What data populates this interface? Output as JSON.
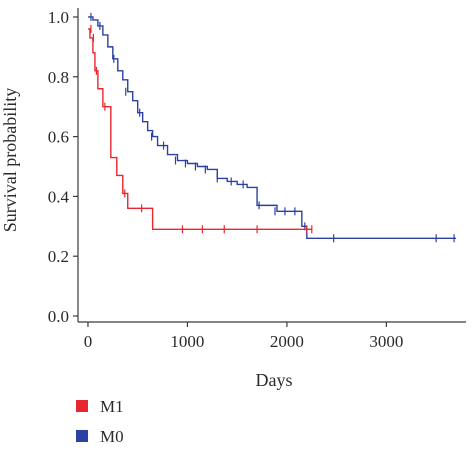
{
  "chart_data": {
    "type": "line",
    "chart_kind": "kaplan-meier",
    "title": "",
    "xlabel": "Days",
    "ylabel": "Survival probability",
    "xlim": [
      -100,
      3800
    ],
    "ylim": [
      -0.02,
      1.03
    ],
    "xticks": [
      0,
      1000,
      2000,
      3000
    ],
    "xtick_labels": [
      "0",
      "1000",
      "2000",
      "3000"
    ],
    "yticks": [
      0.0,
      0.2,
      0.4,
      0.6,
      0.8,
      1.0
    ],
    "ytick_labels": [
      "0.0",
      "0.2",
      "0.4",
      "0.6",
      "0.8",
      "1.0"
    ],
    "grid": false,
    "legend_position": "bottom-left",
    "series": [
      {
        "name": "M1",
        "color": "#e8262f",
        "x": [
          0,
          20,
          50,
          70,
          100,
          150,
          230,
          290,
          350,
          400,
          450,
          650,
          2250
        ],
        "y": [
          0.96,
          0.93,
          0.88,
          0.82,
          0.76,
          0.7,
          0.53,
          0.47,
          0.41,
          0.36,
          0.36,
          0.29,
          0.29
        ],
        "censored_x": [
          30,
          55,
          85,
          170,
          370,
          540,
          950,
          1150,
          1370,
          1700,
          2200,
          2250
        ],
        "censored_y": [
          0.96,
          0.93,
          0.82,
          0.7,
          0.41,
          0.36,
          0.29,
          0.29,
          0.29,
          0.29,
          0.29,
          0.29
        ]
      },
      {
        "name": "M0",
        "color": "#2b41a3",
        "x": [
          0,
          50,
          100,
          150,
          200,
          250,
          300,
          350,
          400,
          450,
          500,
          550,
          600,
          650,
          700,
          800,
          900,
          1000,
          1100,
          1200,
          1300,
          1400,
          1500,
          1600,
          1700,
          1800,
          1900,
          2000,
          2150,
          2200,
          2400,
          3700
        ],
        "y": [
          1.0,
          0.99,
          0.97,
          0.94,
          0.9,
          0.86,
          0.82,
          0.79,
          0.75,
          0.72,
          0.68,
          0.65,
          0.62,
          0.6,
          0.57,
          0.54,
          0.52,
          0.51,
          0.5,
          0.49,
          0.46,
          0.45,
          0.44,
          0.43,
          0.37,
          0.37,
          0.35,
          0.35,
          0.3,
          0.26,
          0.26,
          0.26
        ],
        "censored_x": [
          30,
          120,
          260,
          380,
          520,
          640,
          760,
          880,
          980,
          1080,
          1180,
          1300,
          1440,
          1560,
          1720,
          1880,
          1980,
          2080,
          2180,
          2470,
          3500,
          3680
        ],
        "censored_y": [
          1.0,
          0.97,
          0.86,
          0.75,
          0.68,
          0.6,
          0.57,
          0.52,
          0.51,
          0.5,
          0.49,
          0.46,
          0.45,
          0.44,
          0.37,
          0.35,
          0.35,
          0.35,
          0.3,
          0.26,
          0.26,
          0.26
        ]
      }
    ]
  }
}
